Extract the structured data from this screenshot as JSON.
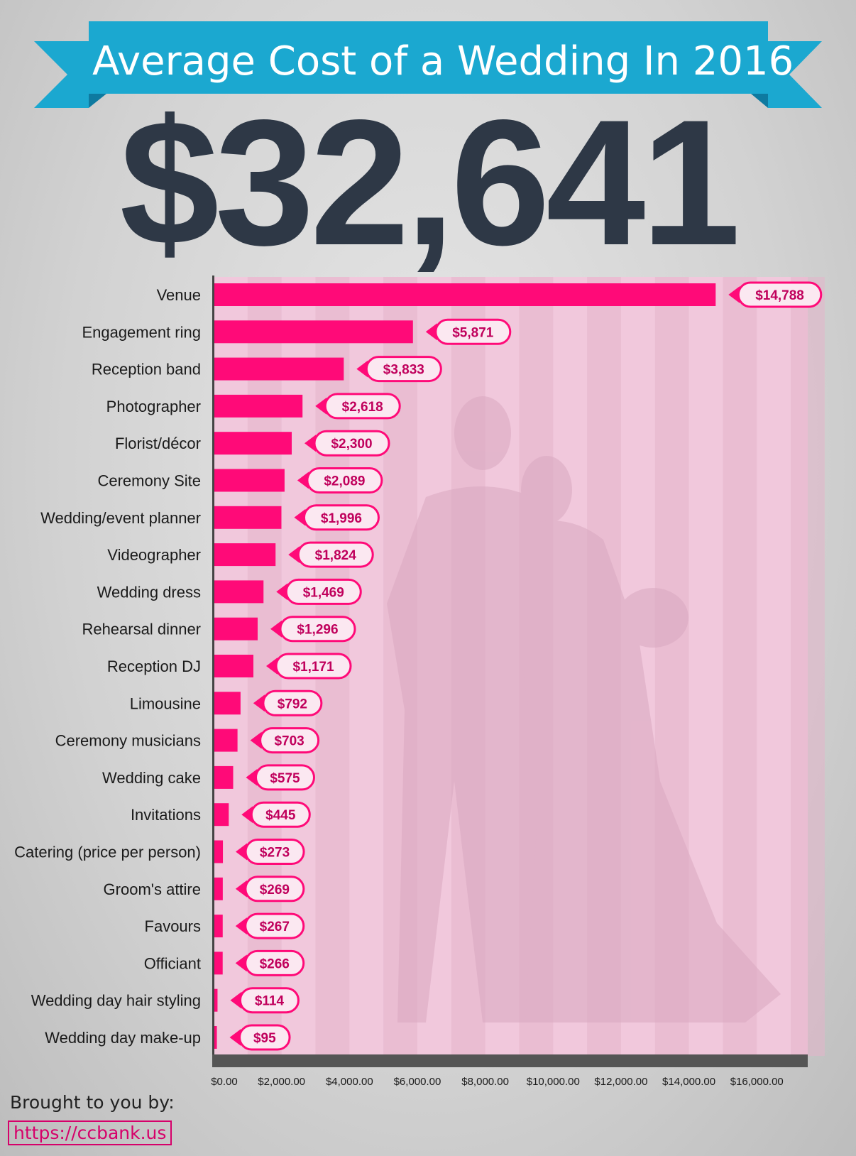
{
  "header": {
    "title": "Average Cost of a Wedding In 2016",
    "total": "$32,641"
  },
  "colors": {
    "banner": "#1ba8d0",
    "banner_dark": "#0e7aa0",
    "bar": "#ff0a78",
    "plot_bg": "#f1c8dc",
    "label_text": "#c0005c",
    "total_text": "#2e3846"
  },
  "chart_data": {
    "type": "bar",
    "orientation": "horizontal",
    "categories": [
      "Venue",
      "Engagement ring",
      "Reception band",
      "Photographer",
      "Florist/décor",
      "Ceremony Site",
      "Wedding/event planner",
      "Videographer",
      "Wedding dress",
      "Rehearsal dinner",
      "Reception DJ",
      "Limousine",
      "Ceremony musicians",
      "Wedding cake",
      "Invitations",
      "Catering (price per  person)",
      "Groom's attire",
      "Favours",
      "Officiant",
      "Wedding day hair styling",
      "Wedding day make-up"
    ],
    "values": [
      14788,
      5871,
      3833,
      2618,
      2300,
      2089,
      1996,
      1824,
      1469,
      1296,
      1171,
      792,
      703,
      575,
      445,
      273,
      269,
      267,
      266,
      114,
      95
    ],
    "value_labels": [
      "$14,788",
      "$5,871",
      "$3,833",
      "$2,618",
      "$2,300",
      "$2,089",
      "$1,996",
      "$1,824",
      "$1,469",
      "$1,296",
      "$1,171",
      "$792",
      "$703",
      "$575",
      "$445",
      "$273",
      "$269",
      "$267",
      "$266",
      "$114",
      "$95"
    ],
    "xlim": [
      0,
      17500
    ],
    "xticks": [
      0,
      2000,
      4000,
      6000,
      8000,
      10000,
      12000,
      14000,
      16000
    ],
    "xtick_labels": [
      "$0.00",
      "$2,000.00",
      "$4,000.00",
      "$6,000.00",
      "$8,000.00",
      "$10,000.00",
      "$12,000.00",
      "$14,000.00",
      "$16,000.00"
    ],
    "grid": "vertical bands",
    "title": "",
    "xlabel": "",
    "ylabel": ""
  },
  "footer": {
    "credit_label": "Brought to you by:",
    "link_text": "https://ccbank.us"
  }
}
